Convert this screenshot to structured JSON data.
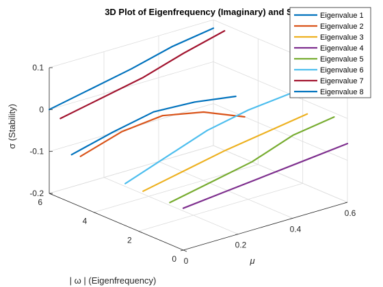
{
  "chart_data": {
    "type": "line",
    "title": "3D Plot of Eigenfrequency (Imaginary) and Stabi",
    "xlabel": "μ",
    "ylabel": "| ω | (Eigenfrequency)",
    "zlabel": "σ (Stability)",
    "xlim": [
      0,
      0.6
    ],
    "ylim": [
      0,
      6
    ],
    "zlim": [
      -0.2,
      0.1
    ],
    "x_ticks": [
      0,
      0.2,
      0.4,
      0.6
    ],
    "x_tick_labels": [
      "0",
      "0.2",
      "0.4",
      "0.6"
    ],
    "y_ticks": [
      0,
      2,
      4,
      6
    ],
    "y_tick_labels": [
      "0",
      "2",
      "4",
      "6"
    ],
    "z_ticks": [
      -0.2,
      -0.1,
      0,
      0.1
    ],
    "z_tick_labels": [
      "-0.2",
      "-0.1",
      "0",
      "0.1"
    ],
    "grid": true,
    "legend_position": "top-right",
    "series": [
      {
        "name": "Eigenvalue 1",
        "color": "#0072BD",
        "x": [
          0,
          0.15,
          0.3,
          0.45,
          0.6
        ],
        "y": [
          6,
          6,
          6,
          6,
          6
        ],
        "z": [
          0.0,
          0.02,
          0.04,
          0.065,
          0.08
        ]
      },
      {
        "name": "Eigenvalue 2",
        "color": "#D95319",
        "x": [
          0,
          0.15,
          0.3,
          0.45,
          0.6
        ],
        "y": [
          4.6,
          4.6,
          4.6,
          4.6,
          4.6
        ],
        "z": [
          -0.08,
          -0.05,
          -0.04,
          -0.06,
          -0.1
        ]
      },
      {
        "name": "Eigenvalue 3",
        "color": "#EDB120",
        "x": [
          0,
          0.15,
          0.3,
          0.45,
          0.6
        ],
        "y": [
          1.8,
          1.8,
          1.8,
          1.8,
          1.8
        ],
        "z": [
          -0.1,
          -0.08,
          -0.06,
          -0.045,
          -0.03
        ]
      },
      {
        "name": "Eigenvalue 4",
        "color": "#7E2F8E",
        "x": [
          0,
          0.15,
          0.3,
          0.45,
          0.6
        ],
        "y": [
          0,
          0,
          0,
          0,
          0
        ],
        "z": [
          -0.1,
          -0.09,
          -0.08,
          -0.07,
          -0.06
        ]
      },
      {
        "name": "Eigenvalue 5",
        "color": "#77AC30",
        "x": [
          0,
          0.15,
          0.3,
          0.45,
          0.6
        ],
        "y": [
          0.6,
          0.6,
          0.6,
          0.6,
          0.6
        ],
        "z": [
          -0.1,
          -0.08,
          -0.06,
          -0.025,
          -0.01
        ]
      },
      {
        "name": "Eigenvalue 6",
        "color": "#4DBEEE",
        "x": [
          0,
          0.15,
          0.3,
          0.45,
          0.6
        ],
        "y": [
          2.6,
          2.6,
          2.6,
          2.6,
          2.6
        ],
        "z": [
          -0.1,
          -0.065,
          -0.03,
          -0.01,
          0.0
        ]
      },
      {
        "name": "Eigenvalue 7",
        "color": "#A2142F",
        "x": [
          0,
          0.15,
          0.3,
          0.45,
          0.6
        ],
        "y": [
          5.5,
          5.5,
          5.5,
          5.5,
          5.5
        ],
        "z": [
          -0.01,
          0.01,
          0.03,
          0.06,
          0.085
        ]
      },
      {
        "name": "Eigenvalue 8",
        "color": "#0072BD",
        "x": [
          0,
          0.15,
          0.3,
          0.45,
          0.6
        ],
        "y": [
          5.0,
          5.0,
          5.0,
          5.0,
          5.0
        ],
        "z": [
          -0.085,
          -0.06,
          -0.04,
          -0.045,
          -0.06
        ]
      }
    ]
  }
}
